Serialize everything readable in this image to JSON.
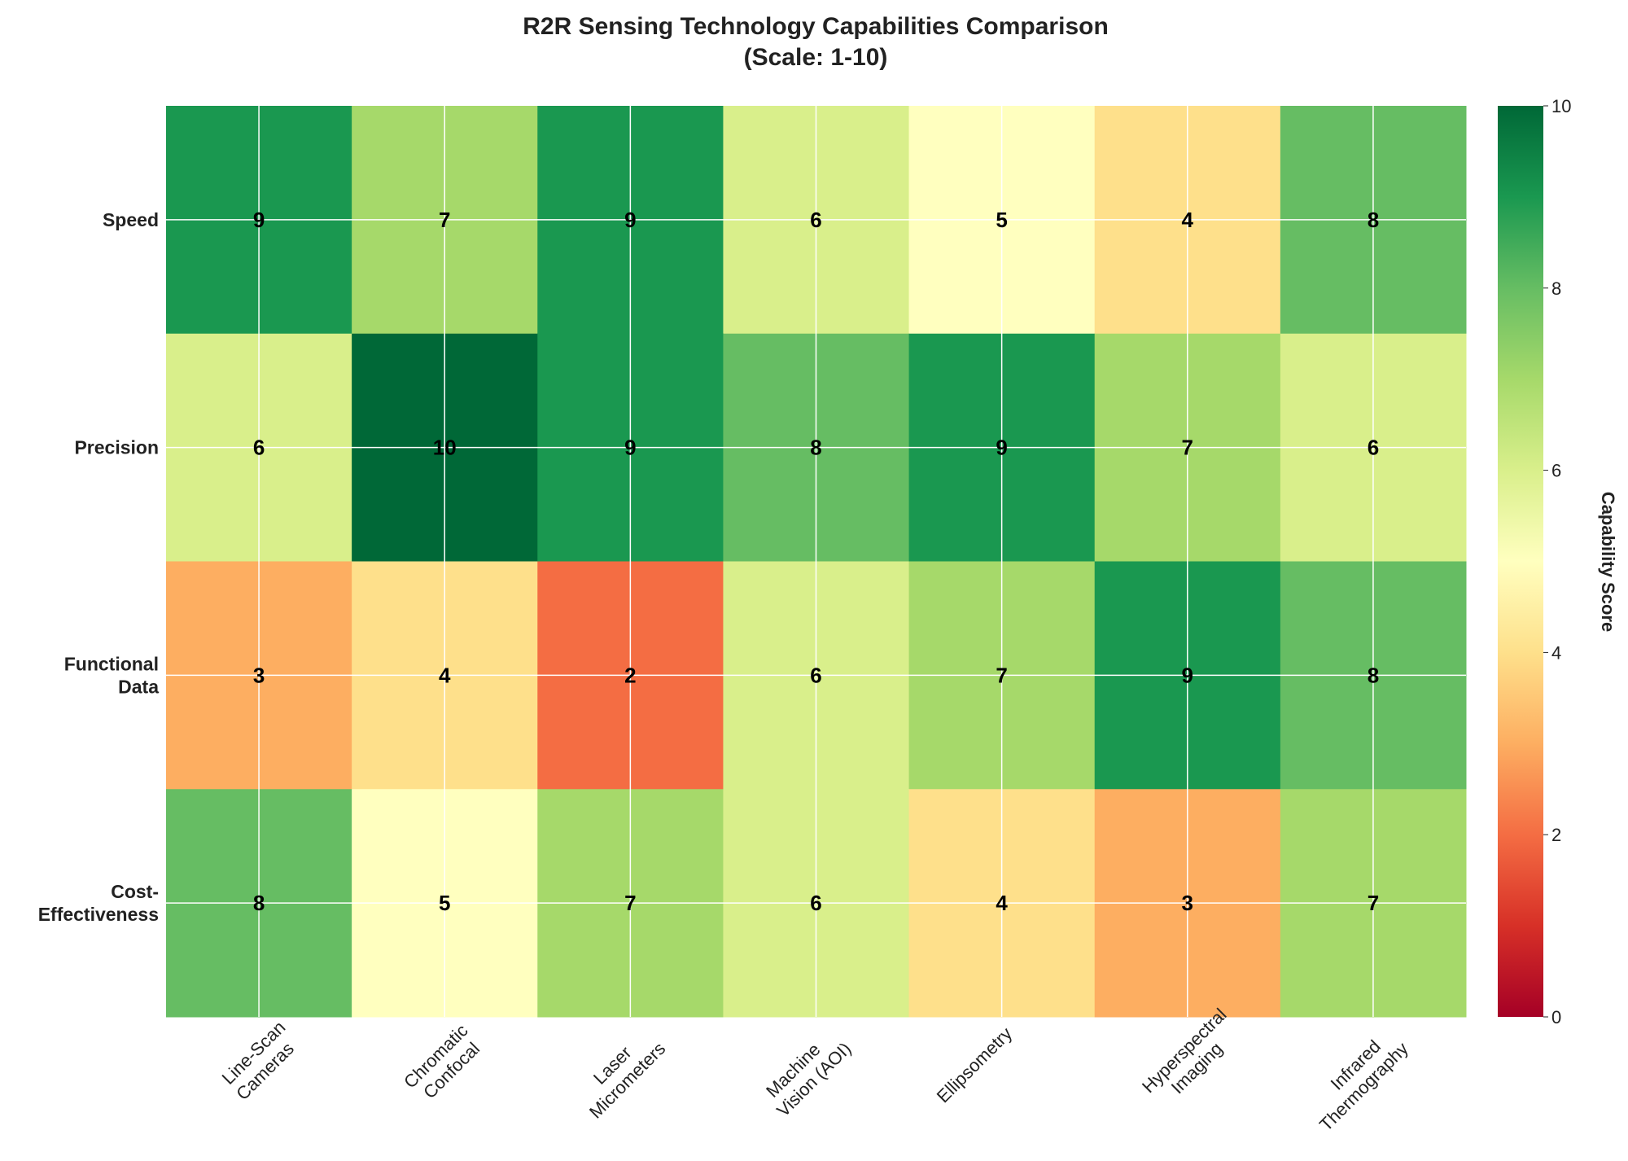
{
  "chart_data": {
    "type": "heatmap",
    "title": "R2R Sensing Technology Capabilities Comparison",
    "subtitle": "(Scale: 1-10)",
    "columns": [
      [
        "Line-Scan",
        "Cameras"
      ],
      [
        "Chromatic",
        "Confocal"
      ],
      [
        "Laser",
        "Micrometers"
      ],
      [
        "Machine",
        "Vision (AOI)"
      ],
      [
        "Ellipsometry"
      ],
      [
        "Hyperspectral",
        "Imaging"
      ],
      [
        "Infrared",
        "Thermography"
      ]
    ],
    "rows": [
      [
        "Speed"
      ],
      [
        "Precision"
      ],
      [
        "Functional",
        "Data"
      ],
      [
        "Cost-",
        "Effectiveness"
      ]
    ],
    "values": [
      [
        9,
        7,
        9,
        6,
        5,
        4,
        8
      ],
      [
        6,
        10,
        9,
        8,
        9,
        7,
        6
      ],
      [
        3,
        4,
        2,
        6,
        7,
        9,
        8
      ],
      [
        8,
        5,
        7,
        6,
        4,
        3,
        7
      ]
    ],
    "colormap": "RdYlGn",
    "vmin": 0,
    "vmax": 10,
    "colorbar": {
      "label": "Capability Score",
      "ticks": [
        "0",
        "2",
        "4",
        "6",
        "8",
        "10"
      ]
    },
    "grid": true
  }
}
